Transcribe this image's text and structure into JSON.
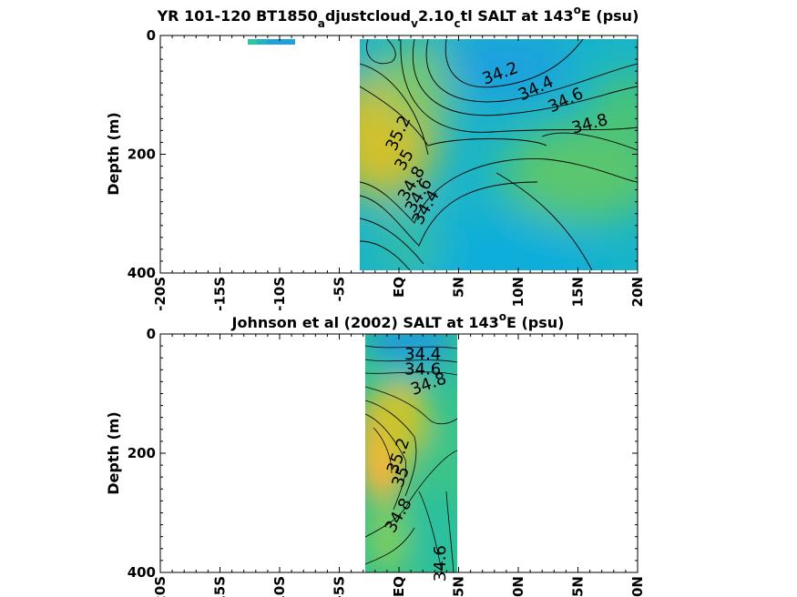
{
  "chart_data": [
    {
      "type": "heatmap",
      "title": {
        "prefix": "YR 101-120 BT1850",
        "sub1": "a",
        "mid1": "djustcloud",
        "sub2": "v",
        "mid2": "2.10",
        "sub3": "c",
        "suffix": "tl SALT at 143",
        "sup": "o",
        "end": "E (psu)"
      },
      "xlabel": "",
      "ylabel": "Depth (m)",
      "x_ticks": [
        "-20S",
        "-15S",
        "-10S",
        "-5S",
        "EQ",
        "5N",
        "10N",
        "15N",
        "20N"
      ],
      "x_tick_values": [
        -20,
        -15,
        -10,
        -5,
        0,
        5,
        10,
        15,
        20
      ],
      "y_ticks": [
        "0",
        "200",
        "400"
      ],
      "y_tick_values": [
        0,
        200,
        400
      ],
      "xlim": [
        -20,
        20
      ],
      "ylim": [
        400,
        0
      ],
      "data_extent": {
        "lat": [
          -3.3,
          20
        ],
        "depth": [
          5,
          395
        ]
      },
      "surface_patch": {
        "lat": [
          -12,
          -8
        ],
        "depth": [
          5,
          15
        ]
      },
      "contour_labels": [
        {
          "text": "34.2",
          "lat": 8.5,
          "depth": 65,
          "angle": -20
        },
        {
          "text": "34.4",
          "lat": 11.5,
          "depth": 90,
          "angle": -25
        },
        {
          "text": "34.6",
          "lat": 14,
          "depth": 110,
          "angle": -25
        },
        {
          "text": "34.8",
          "lat": 16,
          "depth": 150,
          "angle": -15
        },
        {
          "text": "35.2",
          "lat": 0,
          "depth": 165,
          "angle": -65
        },
        {
          "text": "35",
          "lat": 0.5,
          "depth": 210,
          "angle": -60
        },
        {
          "text": "34.8",
          "lat": 1.1,
          "depth": 250,
          "angle": -60
        },
        {
          "text": "34.6",
          "lat": 1.7,
          "depth": 270,
          "angle": -60
        },
        {
          "text": "34.4",
          "lat": 2.3,
          "depth": 290,
          "angle": -60
        }
      ],
      "color_low": "#1e97e0",
      "color_high": "#d6c225"
    },
    {
      "type": "heatmap",
      "title": {
        "prefix": "Johnson et al (2002) SALT at 143",
        "sup": "o",
        "end": "E (psu)"
      },
      "xlabel": "",
      "ylabel": "Depth (m)",
      "x_ticks": [
        "-20S",
        "-15S",
        "-10S",
        "-5S",
        "EQ",
        "5N",
        "10N",
        "15N",
        "20N"
      ],
      "x_tick_values": [
        -20,
        -15,
        -10,
        -5,
        0,
        5,
        10,
        15,
        20
      ],
      "y_ticks": [
        "0",
        "200",
        "400"
      ],
      "y_tick_values": [
        0,
        200,
        400
      ],
      "xlim": [
        -20,
        20
      ],
      "ylim": [
        400,
        0
      ],
      "data_extent": {
        "lat": [
          -2.8,
          5
        ],
        "depth": [
          0,
          400
        ]
      },
      "contour_labels": [
        {
          "text": "34.4",
          "lat": 2,
          "depth": 35,
          "angle": 0
        },
        {
          "text": "34.6",
          "lat": 2,
          "depth": 60,
          "angle": 0
        },
        {
          "text": "34.8",
          "lat": 2.5,
          "depth": 85,
          "angle": -20
        },
        {
          "text": "35.2",
          "lat": 0,
          "depth": 205,
          "angle": -70
        },
        {
          "text": "35",
          "lat": 0.2,
          "depth": 240,
          "angle": -70
        },
        {
          "text": "34.8",
          "lat": 0,
          "depth": 305,
          "angle": -60
        },
        {
          "text": "34.6",
          "lat": 3.5,
          "depth": 385,
          "angle": -90
        }
      ],
      "color_low": "#1e97e0",
      "color_high": "#f6b63a"
    }
  ]
}
